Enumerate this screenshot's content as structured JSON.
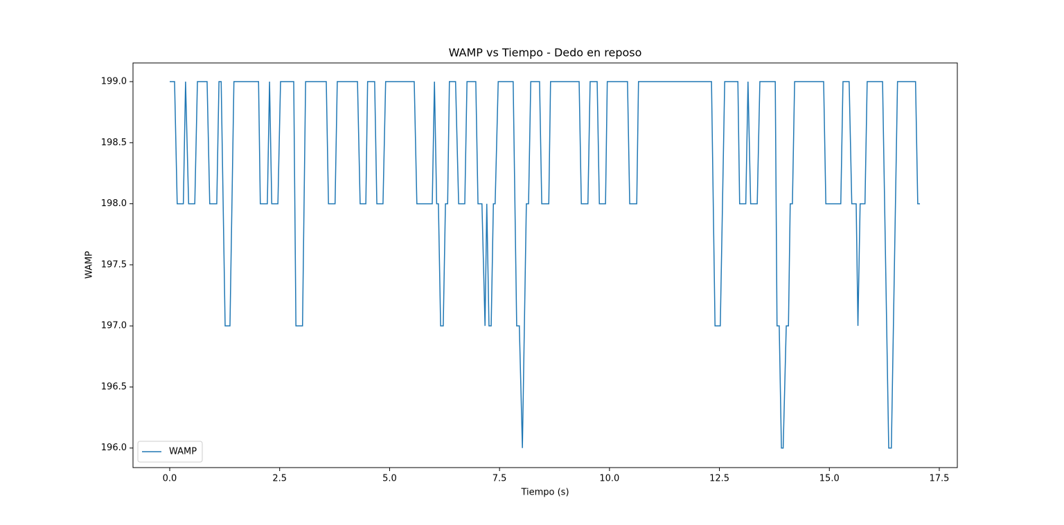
{
  "chart_data": {
    "type": "line",
    "title": "WAMP vs Tiempo - Dedo en reposo",
    "xlabel": "Tiempo (s)",
    "ylabel": "WAMP",
    "xlim": [
      -0.835,
      17.91
    ],
    "ylim": [
      195.84,
      199.153
    ],
    "xticks": [
      {
        "value": 0,
        "label": "0.0"
      },
      2.5,
      {
        "value": 5,
        "label": "5.0"
      },
      7.5,
      {
        "value": 10,
        "label": "10.0"
      },
      12.5,
      {
        "value": 15,
        "label": "15.0"
      },
      17.5
    ],
    "yticks": [
      {
        "value": 196,
        "label": "196.0"
      },
      196.5,
      {
        "value": 197,
        "label": "197.0"
      },
      197.5,
      {
        "value": 198,
        "label": "198.0"
      },
      198.5,
      {
        "value": 199,
        "label": "199.0"
      }
    ],
    "legend": "lower left",
    "x": [
      0,
      0.11,
      0.17,
      0.31,
      0.36,
      0.43,
      0.57,
      0.63,
      0.85,
      0.91,
      1.07,
      1.12,
      1.17,
      1.26,
      1.37,
      1.46,
      2.02,
      2.06,
      2.22,
      2.27,
      2.32,
      2.46,
      2.52,
      2.82,
      2.87,
      3.02,
      3.09,
      3.56,
      3.61,
      3.76,
      3.81,
      4.27,
      4.33,
      4.46,
      4.5,
      4.66,
      4.71,
      4.85,
      4.91,
      5.56,
      5.62,
      5.97,
      6.02,
      6.07,
      6.11,
      6.16,
      6.22,
      6.27,
      6.32,
      6.36,
      6.5,
      6.57,
      6.71,
      6.76,
      6.96,
      7.01,
      7.1,
      7.17,
      7.21,
      7.26,
      7.31,
      7.36,
      7.4,
      7.47,
      7.81,
      7.89,
      7.95,
      8.02,
      8.11,
      8.16,
      8.21,
      8.41,
      8.46,
      8.62,
      8.66,
      9.31,
      9.36,
      9.51,
      9.56,
      9.72,
      9.77,
      9.91,
      9.95,
      10.41,
      10.46,
      10.62,
      10.66,
      12.32,
      12.4,
      12.52,
      12.62,
      12.92,
      12.96,
      13.1,
      13.15,
      13.21,
      13.36,
      13.42,
      13.77,
      13.81,
      13.86,
      13.91,
      13.95,
      14.02,
      14.07,
      14.11,
      14.16,
      14.21,
      14.87,
      14.92,
      15.26,
      15.31,
      15.45,
      15.51,
      15.61,
      15.65,
      15.7,
      15.81,
      15.86,
      16.21,
      16.35,
      16.41,
      16.55,
      16.96,
      17.01,
      17.06
    ],
    "series": [
      {
        "name": "WAMP",
        "color": "#1f77b4",
        "values": [
          199,
          199,
          198,
          198,
          199,
          198,
          198,
          199,
          199,
          198,
          198,
          199,
          199,
          197,
          197,
          199,
          199,
          198,
          198,
          199,
          198,
          198,
          199,
          199,
          197,
          197,
          199,
          199,
          198,
          198,
          199,
          199,
          198,
          198,
          199,
          199,
          198,
          198,
          199,
          199,
          198,
          198,
          199,
          198,
          198,
          197,
          197,
          198,
          198,
          199,
          199,
          198,
          198,
          199,
          199,
          198,
          198,
          197,
          198,
          197,
          197,
          198,
          198,
          199,
          199,
          197,
          197,
          196,
          198,
          198,
          199,
          199,
          198,
          198,
          199,
          199,
          198,
          198,
          199,
          199,
          198,
          198,
          199,
          199,
          198,
          198,
          199,
          199,
          197,
          197,
          199,
          199,
          198,
          198,
          199,
          198,
          198,
          199,
          199,
          197,
          197,
          196,
          196,
          197,
          197,
          198,
          198,
          199,
          199,
          198,
          198,
          199,
          199,
          198,
          198,
          197,
          198,
          198,
          199,
          199,
          196,
          196,
          199,
          199,
          198,
          198
        ]
      }
    ]
  }
}
